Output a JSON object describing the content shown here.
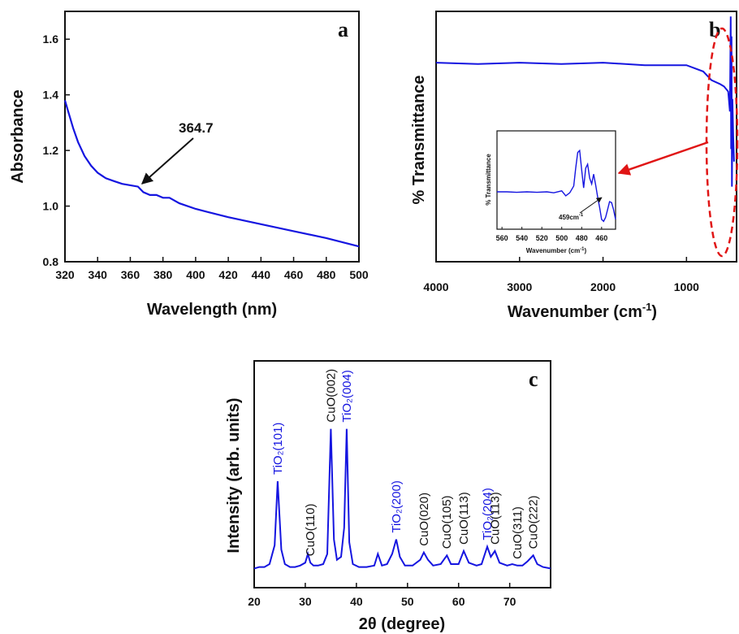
{
  "chart_data": [
    {
      "panel": "a",
      "type": "line",
      "xlabel": "Wavelength (nm)",
      "ylabel": "Absorbance",
      "xlim": [
        320,
        500
      ],
      "ylim": [
        0.8,
        1.7
      ],
      "xticks": [
        320,
        340,
        360,
        380,
        400,
        420,
        440,
        460,
        480,
        500
      ],
      "yticks": [
        0.8,
        1.0,
        1.2,
        1.4,
        1.6
      ],
      "series_color": "#1515e0",
      "x": [
        320,
        322,
        325,
        328,
        332,
        336,
        340,
        345,
        350,
        355,
        360,
        364.7,
        368,
        372,
        376,
        380,
        384,
        390,
        400,
        420,
        440,
        460,
        480,
        500
      ],
      "y": [
        1.38,
        1.34,
        1.28,
        1.23,
        1.18,
        1.145,
        1.12,
        1.1,
        1.09,
        1.08,
        1.075,
        1.07,
        1.05,
        1.04,
        1.04,
        1.03,
        1.03,
        1.01,
        0.99,
        0.96,
        0.935,
        0.91,
        0.885,
        0.855
      ],
      "annotations": [
        {
          "text": "364.7",
          "x": 364.7,
          "y": 1.07
        }
      ]
    },
    {
      "panel": "b",
      "type": "line",
      "xlabel": "Wavenumber (cm-1)",
      "ylabel": "% Transmittance",
      "xlim": [
        4000,
        400
      ],
      "xticks": [
        4000,
        3000,
        2000,
        1000
      ],
      "series_color": "#1515e0",
      "x": [
        4000,
        3500,
        3000,
        2500,
        2000,
        1500,
        1000,
        800,
        700,
        600,
        550,
        500,
        480,
        470,
        465,
        460,
        455,
        450,
        440,
        430
      ],
      "y": [
        0.795,
        0.79,
        0.795,
        0.79,
        0.795,
        0.785,
        0.785,
        0.76,
        0.725,
        0.71,
        0.7,
        0.68,
        0.6,
        0.98,
        0.45,
        0.9,
        0.3,
        0.65,
        0.5,
        0.4
      ],
      "inset": {
        "xlabel": "Wavenumber (cm-1)",
        "ylabel": "% Transmittance",
        "xlim": [
          565,
          446
        ],
        "xticks": [
          560,
          540,
          520,
          500,
          480,
          460
        ],
        "x": [
          565,
          555,
          545,
          535,
          525,
          515,
          508,
          500,
          496,
          492,
          488,
          486,
          484,
          482,
          480,
          478,
          476,
          474,
          472,
          470,
          468,
          466,
          464,
          462,
          460,
          458,
          456,
          454,
          452,
          450,
          448,
          446
        ],
        "y": [
          0.38,
          0.38,
          0.375,
          0.38,
          0.375,
          0.38,
          0.37,
          0.39,
          0.34,
          0.37,
          0.44,
          0.62,
          0.78,
          0.8,
          0.6,
          0.42,
          0.62,
          0.66,
          0.52,
          0.46,
          0.56,
          0.45,
          0.33,
          0.22,
          0.1,
          0.08,
          0.12,
          0.2,
          0.28,
          0.27,
          0.2,
          0.1
        ],
        "annotations": [
          {
            "text": "459cm-1",
            "x": 459
          }
        ]
      }
    },
    {
      "panel": "c",
      "type": "line",
      "xlabel": "2θ (degree)",
      "ylabel": "Intensity (arb. units)",
      "xlim": [
        20,
        78
      ],
      "xticks": [
        20,
        30,
        40,
        50,
        60,
        70
      ],
      "series_color": "#1515e0",
      "x": [
        20,
        21,
        22,
        23,
        24,
        24.6,
        25.3,
        26,
        27,
        28,
        29,
        30,
        30.5,
        31,
        31.6,
        32.5,
        33.5,
        34.3,
        35,
        35.6,
        36.2,
        37,
        37.6,
        38.1,
        38.6,
        39.3,
        40.5,
        42,
        43.5,
        44.2,
        45,
        46,
        47,
        47.8,
        48.5,
        49.5,
        51,
        52.5,
        53.2,
        54,
        55,
        56.5,
        57.7,
        58.5,
        60,
        61,
        62,
        63.5,
        64.5,
        65.6,
        66.3,
        67.1,
        68,
        69.5,
        70.5,
        71.5,
        72.5,
        73.5,
        74.6,
        75.4,
        76.5,
        78
      ],
      "y": [
        0.02,
        0.03,
        0.03,
        0.05,
        0.18,
        0.62,
        0.15,
        0.05,
        0.03,
        0.03,
        0.04,
        0.06,
        0.12,
        0.06,
        0.04,
        0.04,
        0.05,
        0.12,
        0.98,
        0.22,
        0.08,
        0.1,
        0.3,
        0.98,
        0.2,
        0.05,
        0.03,
        0.03,
        0.04,
        0.12,
        0.04,
        0.05,
        0.12,
        0.22,
        0.1,
        0.04,
        0.04,
        0.08,
        0.13,
        0.08,
        0.04,
        0.05,
        0.11,
        0.05,
        0.05,
        0.14,
        0.06,
        0.04,
        0.05,
        0.17,
        0.1,
        0.14,
        0.06,
        0.04,
        0.05,
        0.04,
        0.04,
        0.07,
        0.11,
        0.05,
        0.03,
        0.02
      ],
      "peak_labels": [
        {
          "text": "TiO₂(101)",
          "x": 24.6,
          "color": "#1515e0"
        },
        {
          "text": "CuO(110)",
          "x": 31,
          "color": "#111111"
        },
        {
          "text": "CuO(002)",
          "x": 35,
          "color": "#111111"
        },
        {
          "text": "TiO₂(004)",
          "x": 38.1,
          "color": "#1515e0"
        },
        {
          "text": "TiO₂(200)",
          "x": 47.8,
          "color": "#1515e0"
        },
        {
          "text": "CuO(020)",
          "x": 53.2,
          "color": "#111111"
        },
        {
          "text": "CuO(105)",
          "x": 57.7,
          "color": "#111111"
        },
        {
          "text": "CuO(113)",
          "x": 61,
          "color": "#111111"
        },
        {
          "text": "TiO₂(204)",
          "x": 65.6,
          "color": "#1515e0"
        },
        {
          "text": "CuO(113)",
          "x": 67.1,
          "color": "#111111"
        },
        {
          "text": "CuO(311)",
          "x": 71.5,
          "color": "#111111"
        },
        {
          "text": "CuO(222)",
          "x": 74.6,
          "color": "#111111"
        }
      ]
    }
  ],
  "labels": {
    "panel_a": "a",
    "panel_b": "b",
    "panel_c": "c",
    "a_annotation": "364.7",
    "b_xlabel_main": "Wavenumber (cm",
    "b_xlabel_sup": "-1",
    "b_xlabel_end": ")",
    "b_ylabel": "% Transmittance",
    "inset_xlabel_main": "Wavenumber (cm",
    "inset_xlabel_sup": "-1",
    "inset_xlabel_end": ")",
    "inset_ylabel": "% Transmittance",
    "inset_annot_main": "459cm",
    "inset_annot_sup": "-1",
    "a_xlabel": "Wavelength (nm)",
    "a_ylabel": "Absorbance",
    "c_xlabel": "2θ (degree)",
    "c_ylabel": "Intensity (arb. units)"
  },
  "colors": {
    "series": "#1515e0",
    "highlight": "#e01515",
    "axes": "#111111"
  }
}
